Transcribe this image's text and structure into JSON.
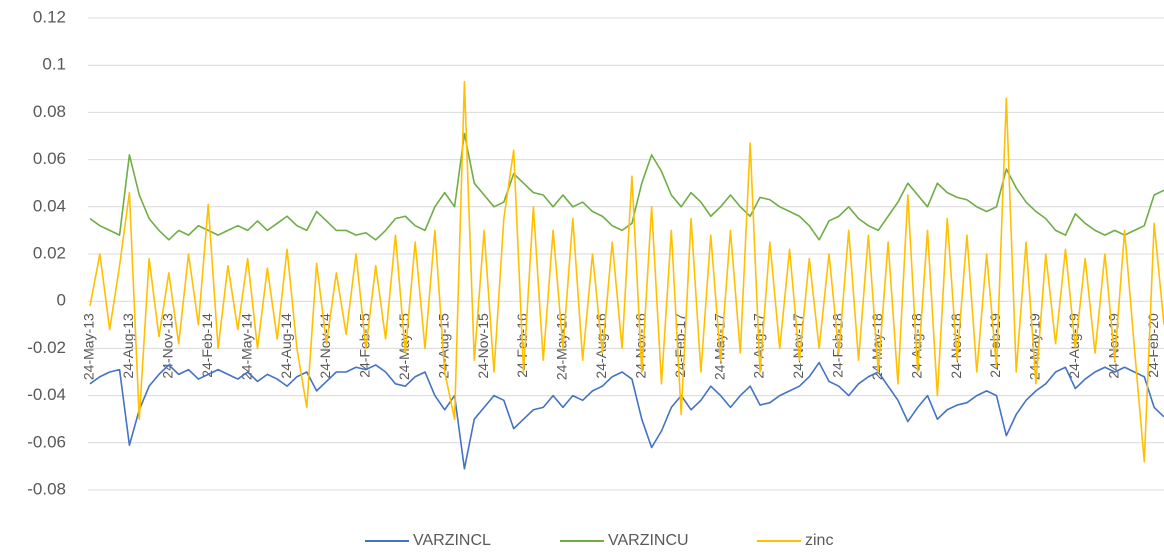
{
  "chart_data": {
    "type": "line",
    "categories": [
      "24-May-13",
      null,
      null,
      null,
      "24-Aug-13",
      null,
      null,
      null,
      "24-Nov-13",
      null,
      null,
      null,
      "24-Feb-14",
      null,
      null,
      null,
      "24-May-14",
      null,
      null,
      null,
      "24-Aug-14",
      null,
      null,
      null,
      "24-Nov-14",
      null,
      null,
      null,
      "24-Feb-15",
      null,
      null,
      null,
      "24-May-15",
      null,
      null,
      null,
      "24-Aug-15",
      null,
      null,
      null,
      "24-Nov-15",
      null,
      null,
      null,
      "24-Feb-16",
      null,
      null,
      null,
      "24-May-16",
      null,
      null,
      null,
      "24-Aug-16",
      null,
      null,
      null,
      "24-Nov-16",
      null,
      null,
      null,
      "24-Feb-17",
      null,
      null,
      null,
      "24-May-17",
      null,
      null,
      null,
      "24-Aug-17",
      null,
      null,
      null,
      "24-Nov-17",
      null,
      null,
      null,
      "24-Feb-18",
      null,
      null,
      null,
      "24-May-18",
      null,
      null,
      null,
      "24-Aug-18",
      null,
      null,
      null,
      "24-Nov-18",
      null,
      null,
      null,
      "24-Feb-19",
      null,
      null,
      null,
      "24-May-19",
      null,
      null,
      null,
      "24-Aug-19",
      null,
      null,
      null,
      "24-Nov-19",
      null,
      null,
      null,
      "24-Feb-20",
      null
    ],
    "series": [
      {
        "name": "VARZINCL",
        "color": "#4472c4",
        "values": [
          -0.035,
          -0.032,
          -0.03,
          -0.029,
          -0.061,
          -0.046,
          -0.036,
          -0.031,
          -0.027,
          -0.031,
          -0.029,
          -0.033,
          -0.031,
          -0.029,
          -0.031,
          -0.033,
          -0.03,
          -0.034,
          -0.031,
          -0.033,
          -0.036,
          -0.032,
          -0.03,
          -0.038,
          -0.034,
          -0.03,
          -0.03,
          -0.028,
          -0.029,
          -0.027,
          -0.03,
          -0.035,
          -0.036,
          -0.032,
          -0.03,
          -0.04,
          -0.046,
          -0.04,
          -0.071,
          -0.05,
          -0.045,
          -0.04,
          -0.042,
          -0.054,
          -0.05,
          -0.046,
          -0.045,
          -0.04,
          -0.045,
          -0.04,
          -0.042,
          -0.038,
          -0.036,
          -0.032,
          -0.03,
          -0.033,
          -0.05,
          -0.062,
          -0.055,
          -0.045,
          -0.04,
          -0.046,
          -0.042,
          -0.036,
          -0.04,
          -0.045,
          -0.04,
          -0.036,
          -0.044,
          -0.043,
          -0.04,
          -0.038,
          -0.036,
          -0.032,
          -0.026,
          -0.034,
          -0.036,
          -0.04,
          -0.035,
          -0.032,
          -0.03,
          -0.036,
          -0.042,
          -0.051,
          -0.045,
          -0.04,
          -0.05,
          -0.046,
          -0.044,
          -0.043,
          -0.04,
          -0.038,
          -0.04,
          -0.057,
          -0.048,
          -0.042,
          -0.038,
          -0.035,
          -0.03,
          -0.028,
          -0.037,
          -0.033,
          -0.03,
          -0.028,
          -0.03,
          -0.028,
          -0.03,
          -0.032,
          -0.045,
          -0.049
        ]
      },
      {
        "name": "VARZINCU",
        "color": "#70ad47",
        "values": [
          0.035,
          0.032,
          0.03,
          0.028,
          0.062,
          0.045,
          0.035,
          0.03,
          0.026,
          0.03,
          0.028,
          0.032,
          0.03,
          0.028,
          0.03,
          0.032,
          0.03,
          0.034,
          0.03,
          0.033,
          0.036,
          0.032,
          0.03,
          0.038,
          0.034,
          0.03,
          0.03,
          0.028,
          0.029,
          0.026,
          0.03,
          0.035,
          0.036,
          0.032,
          0.03,
          0.04,
          0.046,
          0.04,
          0.071,
          0.05,
          0.045,
          0.04,
          0.042,
          0.054,
          0.05,
          0.046,
          0.045,
          0.04,
          0.045,
          0.04,
          0.042,
          0.038,
          0.036,
          0.032,
          0.03,
          0.033,
          0.05,
          0.062,
          0.055,
          0.045,
          0.04,
          0.046,
          0.042,
          0.036,
          0.04,
          0.045,
          0.04,
          0.036,
          0.044,
          0.043,
          0.04,
          0.038,
          0.036,
          0.032,
          0.026,
          0.034,
          0.036,
          0.04,
          0.035,
          0.032,
          0.03,
          0.036,
          0.042,
          0.05,
          0.045,
          0.04,
          0.05,
          0.046,
          0.044,
          0.043,
          0.04,
          0.038,
          0.04,
          0.056,
          0.048,
          0.042,
          0.038,
          0.035,
          0.03,
          0.028,
          0.037,
          0.033,
          0.03,
          0.028,
          0.03,
          0.028,
          0.03,
          0.032,
          0.045,
          0.047
        ]
      },
      {
        "name": "zinc",
        "color": "#ffc000",
        "values": [
          -0.002,
          0.02,
          -0.012,
          0.015,
          0.046,
          -0.05,
          0.018,
          -0.015,
          0.012,
          -0.018,
          0.02,
          -0.01,
          0.041,
          -0.02,
          0.015,
          -0.012,
          0.018,
          -0.02,
          0.014,
          -0.016,
          0.022,
          -0.02,
          -0.045,
          0.016,
          -0.018,
          0.012,
          -0.014,
          0.02,
          -0.02,
          0.015,
          -0.016,
          0.028,
          -0.022,
          0.025,
          -0.02,
          0.03,
          -0.03,
          -0.05,
          0.093,
          -0.025,
          0.03,
          -0.03,
          0.035,
          0.064,
          -0.03,
          0.04,
          -0.025,
          0.03,
          -0.02,
          0.035,
          -0.025,
          0.02,
          -0.022,
          0.025,
          -0.02,
          0.053,
          -0.03,
          0.04,
          -0.035,
          0.03,
          -0.048,
          0.035,
          -0.03,
          0.028,
          -0.025,
          0.03,
          -0.022,
          0.067,
          -0.03,
          0.025,
          -0.02,
          0.022,
          -0.025,
          0.018,
          -0.02,
          0.02,
          -0.022,
          0.03,
          -0.025,
          0.028,
          -0.03,
          0.025,
          -0.035,
          0.045,
          -0.03,
          0.03,
          -0.04,
          0.035,
          -0.025,
          0.028,
          -0.03,
          0.02,
          -0.028,
          0.086,
          -0.03,
          0.025,
          -0.035,
          0.02,
          -0.018,
          0.022,
          -0.02,
          0.018,
          -0.022,
          0.02,
          -0.025,
          0.03,
          -0.02,
          -0.068,
          0.033,
          -0.01
        ]
      }
    ],
    "ylim": [
      -0.08,
      0.12
    ],
    "yticks": [
      -0.08,
      -0.06,
      -0.04,
      -0.02,
      0,
      0.02,
      0.04,
      0.06,
      0.08,
      0.1,
      0.12
    ],
    "grid": true,
    "legend": "bottom"
  }
}
